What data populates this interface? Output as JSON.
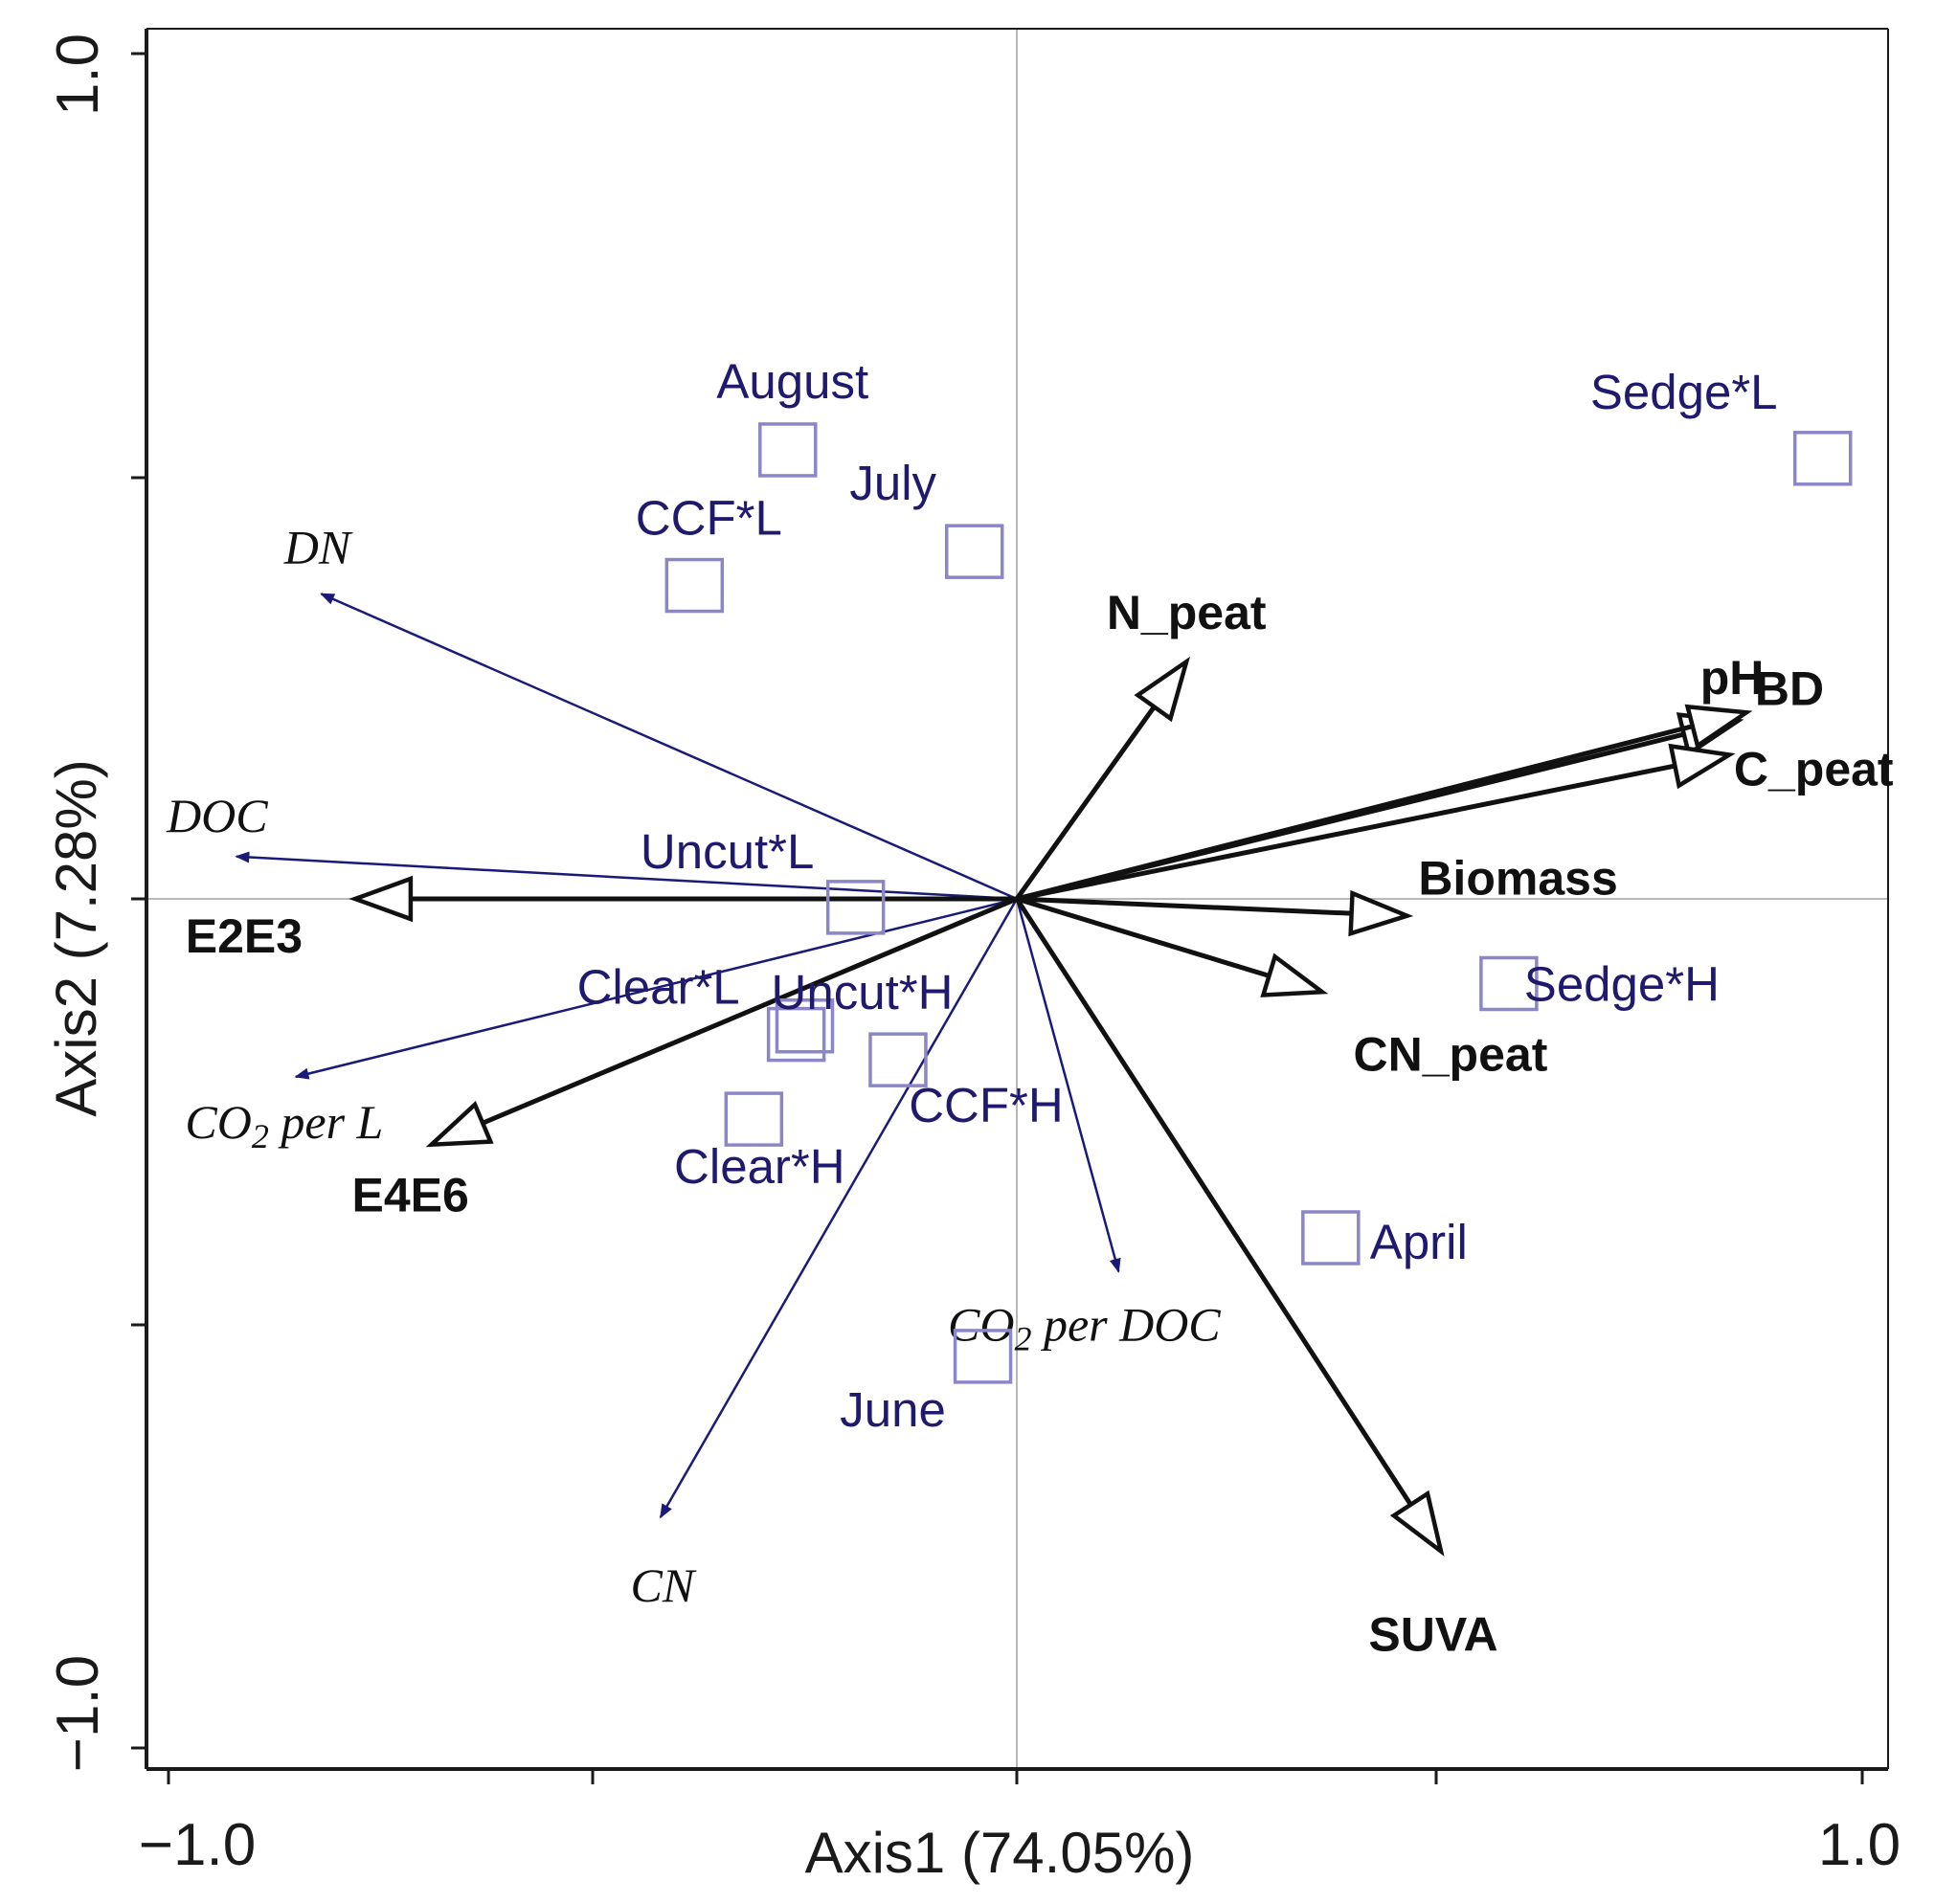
{
  "chart_data": {
    "type": "biplot",
    "xlabel": "Axis1 (74.05%)",
    "ylabel": "Axis2 (7.28%)",
    "xlim": [
      -1.0,
      1.0
    ],
    "ylim": [
      -1.0,
      1.0
    ],
    "x_tick_labels": [
      "−1.0",
      "1.0"
    ],
    "y_tick_labels": [
      "1.0",
      "−1.0"
    ],
    "samples": [
      {
        "label": "August",
        "x": -0.27,
        "y": 0.53
      },
      {
        "label": "July",
        "x": -0.05,
        "y": 0.41
      },
      {
        "label": "CCF*L",
        "x": -0.38,
        "y": 0.37
      },
      {
        "label": "Sedge*L",
        "x": 0.95,
        "y": 0.52
      },
      {
        "label": "Uncut*L",
        "x": -0.19,
        "y": -0.01
      },
      {
        "label": "Clear*L",
        "x": -0.26,
        "y": -0.16
      },
      {
        "label": "Uncut*H",
        "x": -0.25,
        "y": -0.15
      },
      {
        "label": "CCF*H",
        "x": -0.14,
        "y": -0.19
      },
      {
        "label": "Clear*H",
        "x": -0.31,
        "y": -0.26
      },
      {
        "label": "Sedge*H",
        "x": 0.58,
        "y": -0.1
      },
      {
        "label": "April",
        "x": 0.37,
        "y": -0.4
      },
      {
        "label": "June",
        "x": -0.04,
        "y": -0.54
      }
    ],
    "environmental_vectors": [
      {
        "label": "N_peat",
        "x": 0.2,
        "y": 0.28
      },
      {
        "label": "pH",
        "x": 0.85,
        "y": 0.21
      },
      {
        "label": "BD",
        "x": 0.86,
        "y": 0.22
      },
      {
        "label": "C_peat",
        "x": 0.84,
        "y": 0.17
      },
      {
        "label": "Biomass",
        "x": 0.46,
        "y": -0.02
      },
      {
        "label": "CN_peat",
        "x": 0.36,
        "y": -0.11
      },
      {
        "label": "SUVA",
        "x": 0.5,
        "y": -0.77
      },
      {
        "label": "E2E3",
        "x": -0.78,
        "y": 0.0
      },
      {
        "label": "E4E6",
        "x": -0.69,
        "y": -0.29
      }
    ],
    "supplementary_vectors": [
      {
        "label": "DN",
        "x": -0.82,
        "y": 0.36
      },
      {
        "label": "DOC",
        "x": -0.92,
        "y": 0.05
      },
      {
        "label": "CO2 per L",
        "x": -0.85,
        "y": -0.21
      },
      {
        "label": "CO2 per DOC",
        "x": 0.12,
        "y": -0.44
      },
      {
        "label": "CN",
        "x": -0.42,
        "y": -0.73
      }
    ]
  },
  "colors": {
    "sample_label": "#1f1a6e",
    "sample_marker": "#8b86c8",
    "env_arrow": "#111111",
    "supp_arrow": "#1a1a78",
    "axis": "#1a1a1a",
    "zero_line": "#b8b8b8"
  }
}
